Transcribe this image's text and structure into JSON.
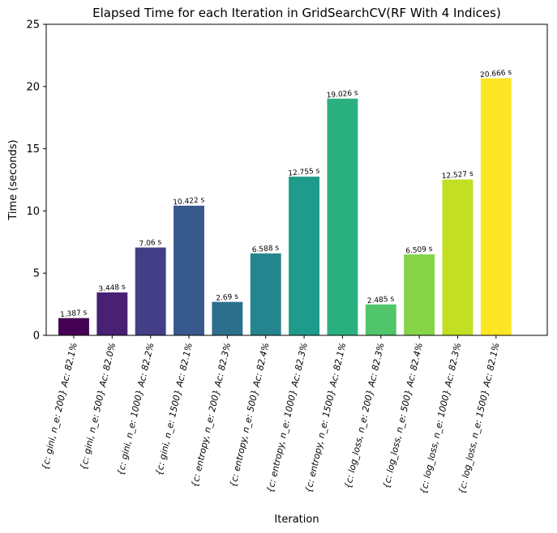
{
  "chart_data": {
    "type": "bar",
    "title": "Elapsed Time for each Iteration in GridSearchCV(RF With 4 Indices)",
    "xlabel": "Iteration",
    "ylabel": "Time (seconds)",
    "ylim": [
      0,
      25
    ],
    "yticks": [
      0,
      5,
      10,
      15,
      20,
      25
    ],
    "grid": false,
    "categories": [
      "{c: gini, n_e: 200} Ac: 82.1%",
      "{c: gini, n_e: 500} Ac: 82.0%",
      "{c: gini, n_e: 1000} Ac: 82.2%",
      "{c: gini, n_e: 1500} Ac: 82.1%",
      "{c: entropy, n_e: 200} Ac: 82.3%",
      "{c: entropy, n_e: 500} Ac: 82.4%",
      "{c: entropy, n_e: 1000} Ac: 82.3%",
      "{c: entropy, n_e: 1500} Ac: 82.1%",
      "{c: log_loss, n_e: 200} Ac: 82.3%",
      "{c: log_loss, n_e: 500} Ac: 82.4%",
      "{c: log_loss, n_e: 1000} Ac: 82.3%",
      "{c: log_loss, n_e: 1500} Ac: 82.1%"
    ],
    "values": [
      1.387,
      3.448,
      7.06,
      10.422,
      2.69,
      6.588,
      12.755,
      19.026,
      2.485,
      6.509,
      12.527,
      20.666
    ],
    "value_labels": [
      "1.387 s",
      "3.448 s",
      "7.06 s",
      "10.422 s",
      "2.69 s",
      "6.588 s",
      "12.755 s",
      "19.026 s",
      "2.485 s",
      "6.509 s",
      "12.527 s",
      "20.666 s"
    ],
    "colors": [
      "#440154",
      "#482173",
      "#433e85",
      "#38598c",
      "#2d708e",
      "#25858e",
      "#1e9b8a",
      "#2ab07f",
      "#51c56a",
      "#86d549",
      "#c2df23",
      "#fde725"
    ]
  }
}
